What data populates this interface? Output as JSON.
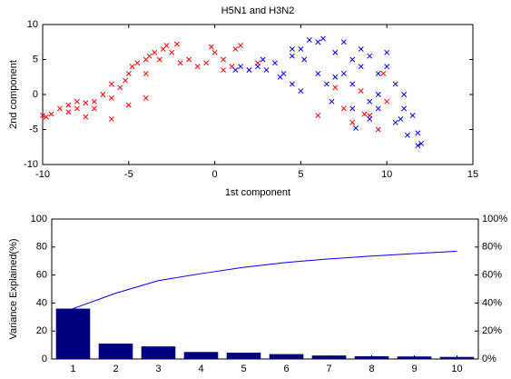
{
  "chart_data": [
    {
      "type": "scatter",
      "title": "H5N1 and H3N2",
      "xlabel": "1st component",
      "ylabel": "2nd component",
      "xlim": [
        -10,
        15
      ],
      "ylim": [
        -10,
        10
      ],
      "xticks": [
        -10,
        -5,
        0,
        5,
        10,
        15
      ],
      "yticks": [
        -10,
        -5,
        0,
        5,
        10
      ],
      "series": [
        {
          "color": "#ff0000",
          "x": [
            -10,
            -9.8,
            -9.5,
            -9,
            -8.5,
            -8,
            -7.5,
            -7,
            -7,
            -6.5,
            -6,
            -6,
            -5.5,
            -5.2,
            -5,
            -4.8,
            -4.5,
            -4,
            -4,
            -3.8,
            -3.5,
            -3.2,
            -3,
            -2.8,
            -2.5,
            -2.2,
            -2,
            -1.5,
            -1,
            -0.5,
            -0.2,
            0,
            0.5,
            0.5,
            1,
            1.2,
            1.5,
            2,
            2.5,
            -6,
            -7.5,
            -8,
            -8.5,
            -5,
            -4,
            6,
            7,
            7.5,
            8,
            8.5,
            9,
            9.5,
            10,
            9.8,
            8.7
          ],
          "y": [
            -3,
            -3.2,
            -2.8,
            -2,
            -1.5,
            -2,
            -1.2,
            -1,
            -2,
            0,
            -0.5,
            1.5,
            1,
            2,
            3,
            4,
            4.5,
            5,
            3,
            5.5,
            6,
            5,
            6.5,
            7,
            6,
            7.2,
            4.5,
            5,
            4,
            4.5,
            6.8,
            6,
            5,
            3.5,
            4,
            6.5,
            7,
            3.5,
            4.5,
            -3.5,
            -3.2,
            -1,
            -2.5,
            -1.5,
            -0.5,
            -3,
            1,
            -2,
            -4,
            0.5,
            -3,
            -5,
            -1,
            3,
            -2.8
          ]
        },
        {
          "color": "#0000ff",
          "x": [
            1.2,
            1.5,
            2,
            2.5,
            3,
            3.5,
            4,
            4.5,
            5,
            5.5,
            6,
            6.3,
            5.2,
            6,
            6.5,
            5,
            4.5,
            7,
            7.5,
            8,
            8.5,
            8.5,
            9,
            9.5,
            9.5,
            10,
            10.5,
            11,
            11,
            11.5,
            11.8,
            12,
            11.8,
            9,
            8,
            9.5,
            10.5,
            7.5,
            10,
            8,
            7,
            4.5,
            2.8,
            6.8,
            9,
            8.2,
            11.2,
            10.8,
            3.8
          ],
          "y": [
            3.5,
            4,
            3.5,
            4,
            3.5,
            4.5,
            3,
            5.5,
            6.5,
            7.8,
            7.5,
            8,
            5,
            3,
            1.5,
            0.5,
            1.5,
            6,
            7.5,
            5,
            4,
            6.5,
            5.5,
            3,
            0,
            4,
            1.5,
            0,
            -2,
            -3,
            -5.5,
            -7,
            -7.3,
            -1,
            -2,
            -2,
            -4,
            3,
            6,
            1.5,
            2.5,
            6.5,
            5,
            -1,
            -3.5,
            -4.8,
            -5.8,
            -3.5,
            2.5
          ]
        }
      ]
    },
    {
      "type": "pareto",
      "ylabel": "Variance Explained(%)",
      "categories": [
        "1",
        "2",
        "3",
        "4",
        "5",
        "6",
        "7",
        "8",
        "9",
        "10"
      ],
      "ylim": [
        0,
        100
      ],
      "yticks": [
        0,
        20,
        40,
        60,
        80,
        100
      ],
      "y2lim": [
        0,
        100
      ],
      "y2ticks": [
        {
          "value": 0,
          "label": "0%"
        },
        {
          "value": 20,
          "label": "20%"
        },
        {
          "value": 40,
          "label": "40%"
        },
        {
          "value": 60,
          "label": "60%"
        },
        {
          "value": 80,
          "label": "80%"
        },
        {
          "value": 100,
          "label": "100%"
        }
      ],
      "series": [
        {
          "type": "bar",
          "color": "#000080",
          "values": [
            36,
            11,
            9,
            5,
            4.5,
            3.5,
            2.5,
            2,
            1.8,
            1.5
          ]
        },
        {
          "type": "line",
          "axis": "y2",
          "color": "#0000ff",
          "values": [
            36,
            47,
            56,
            61,
            65.5,
            69,
            71.5,
            73.5,
            75.3,
            77
          ]
        }
      ]
    }
  ]
}
